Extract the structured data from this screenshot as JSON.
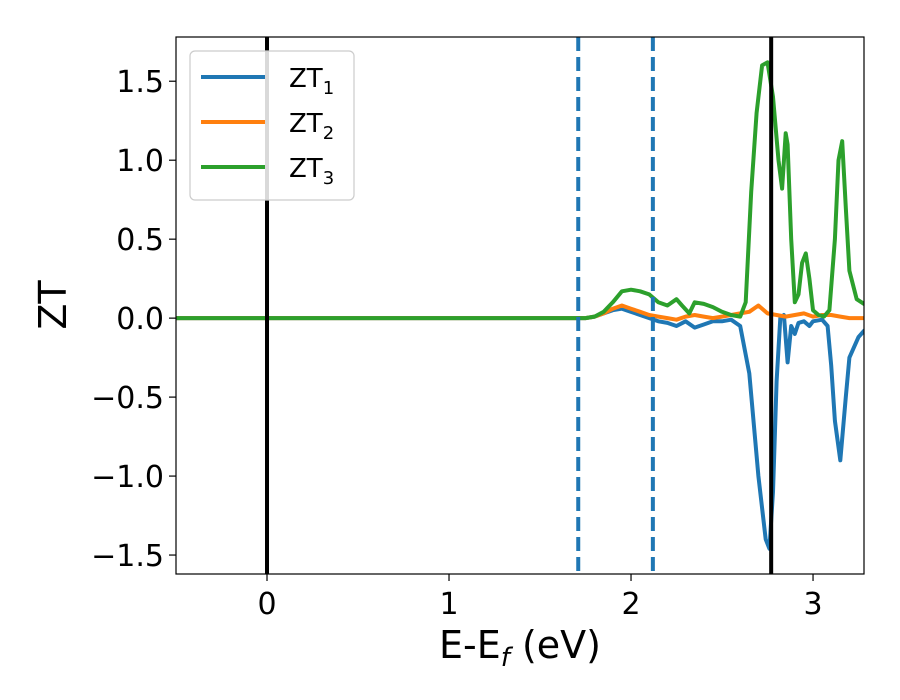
{
  "chart_data": {
    "type": "line",
    "xlabel": "E-E",
    "xlabel_sub": "f",
    "xlabel_unit": " (eV)",
    "ylabel": "ZT",
    "xlim": [
      -0.5,
      3.28
    ],
    "ylim": [
      -1.62,
      1.78
    ],
    "xticks": [
      0,
      1,
      2,
      3
    ],
    "xtick_labels": [
      "0",
      "1",
      "2",
      "3"
    ],
    "yticks": [
      -1.5,
      -1.0,
      -0.5,
      0.0,
      0.5,
      1.0,
      1.5
    ],
    "ytick_labels": [
      "−1.5",
      "−1.0",
      "−0.5",
      "0.0",
      "0.5",
      "1.0",
      "1.5"
    ],
    "grid": false,
    "legend_position": "top-left",
    "vlines": [
      {
        "x": 0.0,
        "style": "solid",
        "color": "#000000"
      },
      {
        "x": 2.77,
        "style": "solid",
        "color": "#000000"
      },
      {
        "x": 1.71,
        "style": "dashed",
        "color": "#1f77b4"
      },
      {
        "x": 2.12,
        "style": "dashed",
        "color": "#1f77b4"
      }
    ],
    "series": [
      {
        "name": "ZT",
        "sub": "1",
        "color": "#1f77b4",
        "x": [
          -0.5,
          1.75,
          1.8,
          1.85,
          1.9,
          1.95,
          2.0,
          2.05,
          2.1,
          2.15,
          2.2,
          2.25,
          2.3,
          2.35,
          2.4,
          2.45,
          2.5,
          2.55,
          2.6,
          2.65,
          2.7,
          2.74,
          2.76,
          2.78,
          2.8,
          2.82,
          2.84,
          2.86,
          2.88,
          2.9,
          2.92,
          2.95,
          2.98,
          3.0,
          3.05,
          3.08,
          3.1,
          3.12,
          3.15,
          3.18,
          3.2,
          3.25,
          3.28
        ],
        "y": [
          0.0,
          0.0,
          0.01,
          0.03,
          0.05,
          0.06,
          0.04,
          0.02,
          0.0,
          -0.02,
          -0.03,
          -0.05,
          -0.02,
          -0.06,
          -0.04,
          -0.02,
          -0.02,
          -0.01,
          -0.05,
          -0.35,
          -1.0,
          -1.4,
          -1.46,
          -1.1,
          -0.4,
          0.0,
          0.02,
          -0.28,
          -0.05,
          -0.1,
          -0.03,
          -0.02,
          -0.05,
          -0.02,
          -0.01,
          -0.05,
          -0.3,
          -0.65,
          -0.9,
          -0.5,
          -0.25,
          -0.12,
          -0.08
        ]
      },
      {
        "name": "ZT",
        "sub": "2",
        "color": "#ff7f0e",
        "x": [
          -0.5,
          1.75,
          1.8,
          1.85,
          1.9,
          1.95,
          2.0,
          2.05,
          2.1,
          2.15,
          2.2,
          2.25,
          2.3,
          2.35,
          2.4,
          2.45,
          2.5,
          2.55,
          2.6,
          2.65,
          2.7,
          2.75,
          2.8,
          2.85,
          2.9,
          2.95,
          3.0,
          3.05,
          3.1,
          3.15,
          3.2,
          3.28
        ],
        "y": [
          0.0,
          0.0,
          0.01,
          0.03,
          0.06,
          0.08,
          0.06,
          0.04,
          0.02,
          0.01,
          0.0,
          -0.01,
          0.01,
          0.02,
          0.01,
          0.0,
          0.01,
          0.02,
          0.03,
          0.04,
          0.08,
          0.03,
          0.02,
          0.01,
          0.02,
          0.03,
          0.01,
          0.02,
          0.02,
          0.01,
          0.0,
          0.0
        ]
      },
      {
        "name": "ZT",
        "sub": "3",
        "color": "#2ca02c",
        "x": [
          -0.5,
          1.75,
          1.8,
          1.85,
          1.9,
          1.95,
          2.0,
          2.05,
          2.1,
          2.15,
          2.2,
          2.25,
          2.28,
          2.32,
          2.35,
          2.4,
          2.45,
          2.5,
          2.55,
          2.6,
          2.63,
          2.66,
          2.69,
          2.72,
          2.75,
          2.78,
          2.81,
          2.83,
          2.85,
          2.86,
          2.88,
          2.9,
          2.92,
          2.94,
          2.96,
          2.98,
          3.0,
          3.03,
          3.06,
          3.09,
          3.12,
          3.14,
          3.16,
          3.18,
          3.2,
          3.24,
          3.28
        ],
        "y": [
          0.0,
          0.0,
          0.01,
          0.04,
          0.1,
          0.17,
          0.18,
          0.17,
          0.15,
          0.1,
          0.08,
          0.12,
          0.08,
          0.03,
          0.1,
          0.09,
          0.07,
          0.04,
          0.02,
          0.01,
          0.1,
          0.8,
          1.3,
          1.6,
          1.62,
          1.4,
          1.0,
          0.82,
          1.17,
          1.1,
          0.5,
          0.1,
          0.15,
          0.35,
          0.41,
          0.25,
          0.05,
          0.02,
          0.01,
          0.05,
          0.5,
          1.0,
          1.12,
          0.7,
          0.3,
          0.12,
          0.09
        ]
      }
    ]
  }
}
